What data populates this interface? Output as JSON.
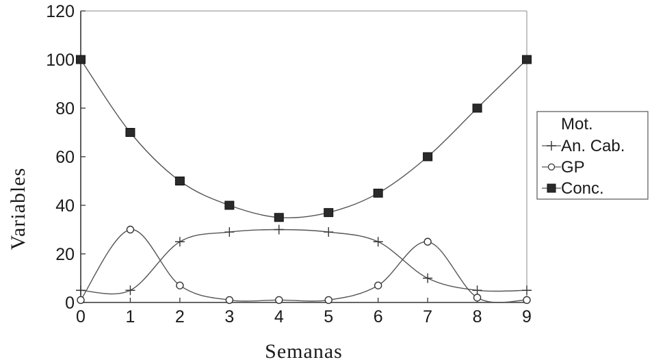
{
  "chart_data": {
    "type": "line",
    "xlabel": "Semanas",
    "ylabel": "Variables",
    "x": [
      0,
      1,
      2,
      3,
      4,
      5,
      6,
      7,
      8,
      9
    ],
    "xlim": [
      0,
      9
    ],
    "ylim": [
      0,
      120
    ],
    "xticks": [
      0,
      1,
      2,
      3,
      4,
      5,
      6,
      7,
      8,
      9
    ],
    "yticks": [
      0,
      20,
      40,
      60,
      80,
      100,
      120
    ],
    "grid": false,
    "smooth": true,
    "legend": {
      "placement": "right",
      "entries": [
        "Mot.",
        "An. Cab.",
        "GP",
        "Conc."
      ]
    },
    "series": [
      {
        "name": "Mot.",
        "values": [
          0,
          0,
          0,
          0,
          0,
          0,
          0,
          0,
          0,
          0
        ],
        "marker": "none",
        "color": "#555555"
      },
      {
        "name": "An. Cab.",
        "values": [
          5,
          5,
          25,
          29,
          30,
          29,
          25,
          10,
          5,
          5
        ],
        "marker": "plus",
        "color": "#555555"
      },
      {
        "name": "GP",
        "values": [
          1,
          30,
          7,
          1,
          1,
          1,
          7,
          25,
          2,
          1
        ],
        "marker": "circle",
        "color": "#555555"
      },
      {
        "name": "Conc.",
        "values": [
          100,
          70,
          50,
          40,
          35,
          37,
          45,
          60,
          80,
          100
        ],
        "marker": "square",
        "color": "#555555"
      }
    ]
  }
}
